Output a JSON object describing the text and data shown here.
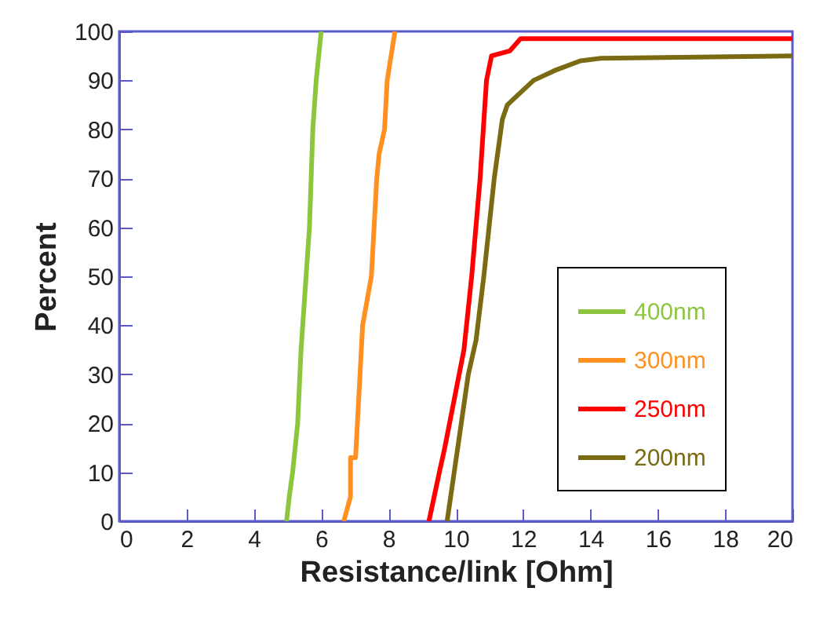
{
  "chart_data": {
    "type": "line",
    "xlabel": "Resistance/link [Ohm]",
    "ylabel": "Percent",
    "xlim": [
      0,
      20
    ],
    "xticks": [
      0,
      2,
      4,
      6,
      8,
      10,
      12,
      14,
      16,
      18,
      20
    ],
    "ylim": [
      0,
      100
    ],
    "yticks": [
      0,
      10,
      20,
      30,
      40,
      50,
      60,
      70,
      80,
      90,
      100
    ],
    "grid": false,
    "legend": "right",
    "marker": "none",
    "line_style": "solid",
    "series": [
      {
        "name": "400nm",
        "color": "#8cc63f",
        "x": [
          4.97,
          5.05,
          5.15,
          5.3,
          5.4,
          5.55,
          5.65,
          5.75,
          5.85,
          6.0
        ],
        "values": [
          0,
          5,
          10,
          20,
          35,
          50,
          60,
          80,
          90,
          100
        ]
      },
      {
        "name": "300nm",
        "color": "#ff9022",
        "x": [
          6.67,
          6.87,
          6.87,
          7.02,
          7.23,
          7.49,
          7.65,
          7.72,
          7.88,
          7.96,
          8.19
        ],
        "values": [
          0,
          5,
          13,
          13,
          40,
          50,
          70,
          75,
          80,
          90,
          100
        ]
      },
      {
        "name": "250nm",
        "color": "#ff0000",
        "x": [
          9.2,
          9.51,
          9.67,
          10.24,
          10.47,
          10.72,
          10.91,
          11.06,
          11.6,
          11.92,
          20
        ],
        "values": [
          0,
          10,
          15,
          35,
          50,
          70,
          90,
          95,
          96,
          98.5,
          98.5
        ]
      },
      {
        "name": "200nm",
        "color": "#7a6a12",
        "x": [
          9.74,
          9.95,
          10.37,
          10.6,
          10.83,
          11.14,
          11.38,
          11.53,
          11.84,
          12.31,
          12.93,
          13.7,
          14.31,
          20
        ],
        "values": [
          0,
          10,
          30,
          37,
          50,
          70,
          82,
          85,
          87,
          90,
          92,
          94,
          94.5,
          95
        ]
      }
    ]
  }
}
